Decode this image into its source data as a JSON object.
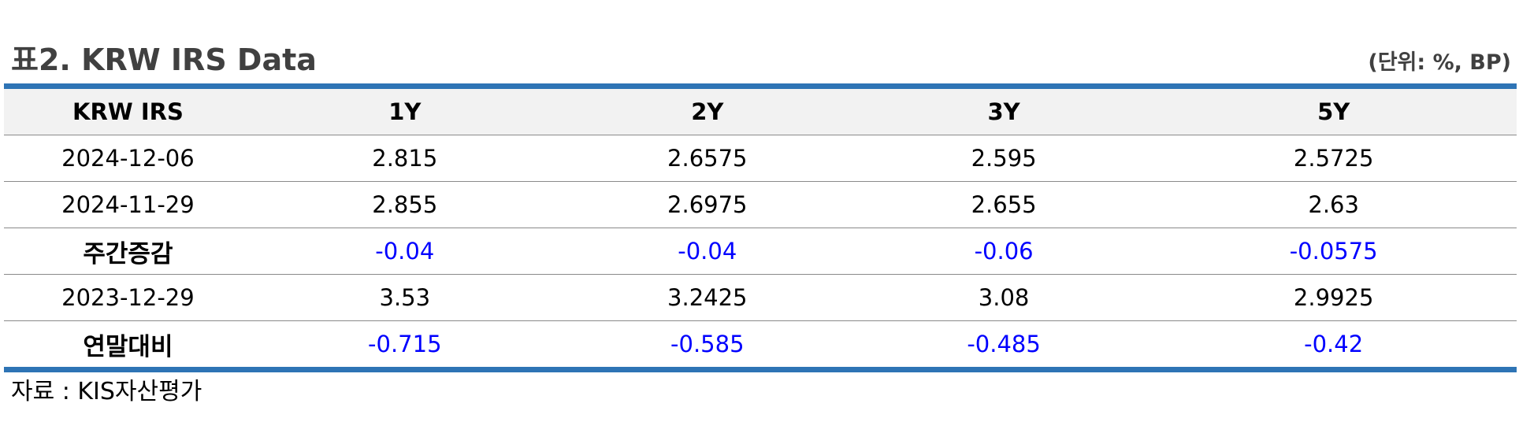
{
  "title": "표2. KRW IRS Data",
  "unit": "(단위: %, BP)",
  "table": {
    "headers": [
      "KRW IRS",
      "1Y",
      "2Y",
      "3Y",
      "5Y"
    ],
    "rows": [
      {
        "label": "2024-12-06",
        "values": [
          "2.815",
          "2.6575",
          "2.595",
          "2.5725"
        ]
      },
      {
        "label": "2024-11-29",
        "values": [
          "2.855",
          "2.6975",
          "2.655",
          "2.63"
        ]
      },
      {
        "label": "주간증감",
        "values": [
          "-0.04",
          "-0.04",
          "-0.06",
          "-0.0575"
        ]
      },
      {
        "label": "2023-12-29",
        "values": [
          "3.53",
          "3.2425",
          "3.08",
          "2.9925"
        ]
      },
      {
        "label": "연말대비",
        "values": [
          "-0.715",
          "-0.585",
          "-0.485",
          "-0.42"
        ]
      }
    ]
  },
  "source": "자료 : KIS자산평가",
  "colors": {
    "accent_border": "#2e74b5",
    "header_background": "#f2f2f2",
    "negative_value": "#0000ff",
    "title_text": "#404040"
  }
}
